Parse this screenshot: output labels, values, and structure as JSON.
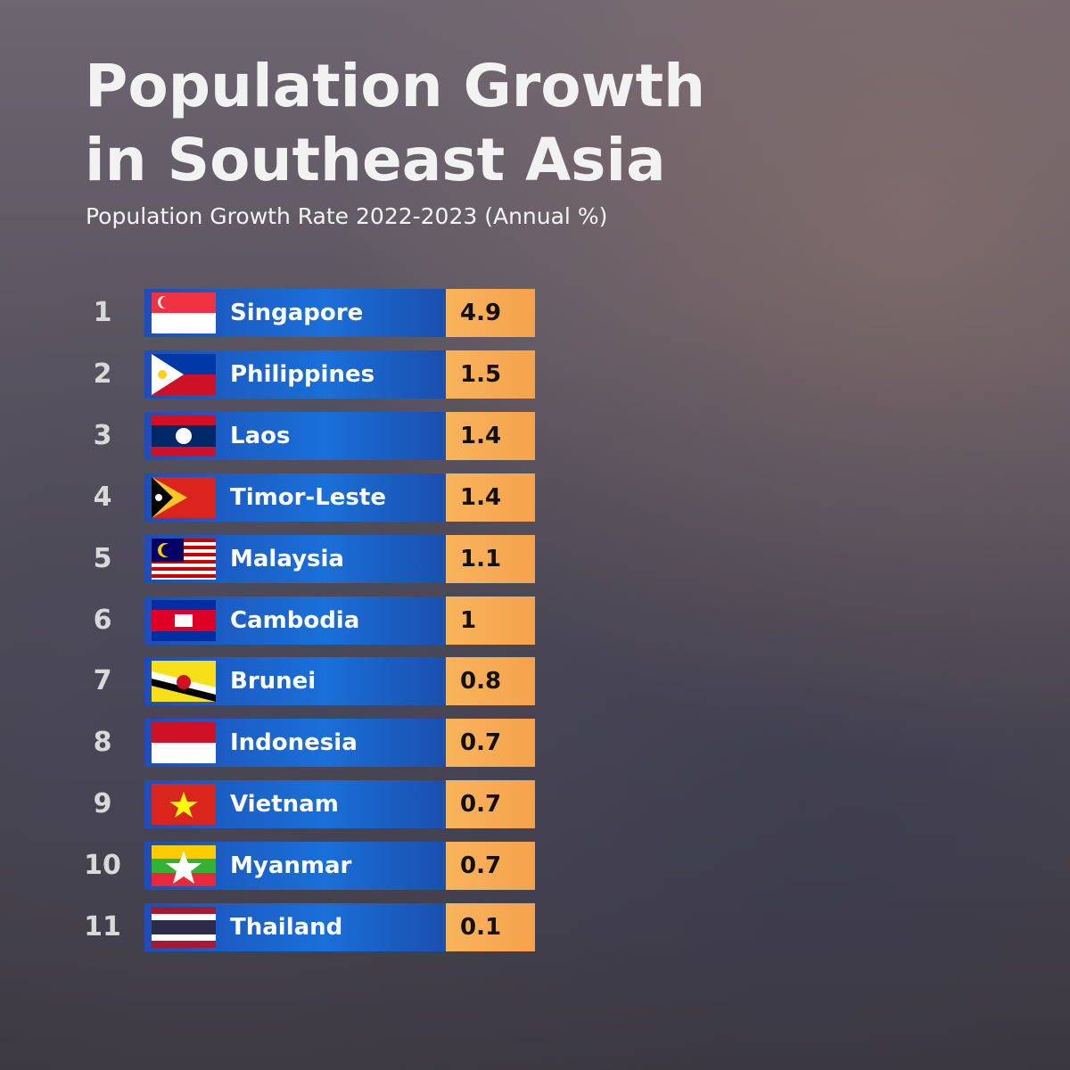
{
  "header": {
    "title_lines": [
      "Population Growth",
      "in Southeast Asia"
    ],
    "subtitle": "Population Growth Rate 2022-2023 (Annual %)"
  },
  "table": {
    "rows": [
      {
        "rank": 1,
        "country": "Singapore",
        "value": 4.9
      },
      {
        "rank": 2,
        "country": "Philippines",
        "value": 1.5
      },
      {
        "rank": 3,
        "country": "Laos",
        "value": 1.4
      },
      {
        "rank": 4,
        "country": "Timor-Leste",
        "value": 1.4
      },
      {
        "rank": 5,
        "country": "Malaysia",
        "value": 1.1
      },
      {
        "rank": 6,
        "country": "Cambodia",
        "value": 1
      },
      {
        "rank": 7,
        "country": "Brunei",
        "value": 0.8
      },
      {
        "rank": 8,
        "country": "Indonesia",
        "value": 0.7
      },
      {
        "rank": 9,
        "country": "Vietnam",
        "value": 0.7
      },
      {
        "rank": 10,
        "country": "Myanmar",
        "value": 0.7
      },
      {
        "rank": 11,
        "country": "Thailand",
        "value": 0.1
      }
    ]
  }
}
